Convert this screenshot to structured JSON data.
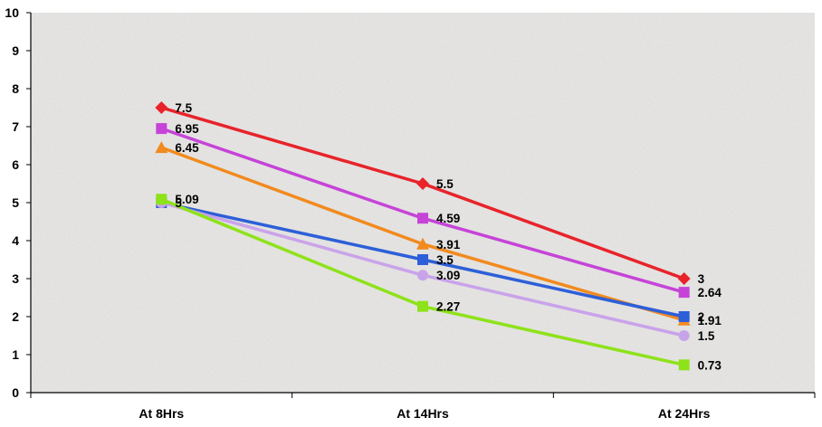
{
  "chart_data": {
    "type": "line",
    "categories": [
      "At 8Hrs",
      "At 14Hrs",
      "At 24Hrs"
    ],
    "ylim": [
      0,
      10
    ],
    "yticks": [
      "0",
      "1",
      "2",
      "3",
      "4",
      "5",
      "6",
      "7",
      "8",
      "9",
      "10"
    ],
    "grid": false,
    "background": "textured-grey",
    "series": [
      {
        "color": "#e8232a",
        "marker": "diamond",
        "values": [
          7.5,
          5.5,
          3
        ],
        "labels": [
          "7.5",
          "5.5",
          "3"
        ]
      },
      {
        "color": "#c643d8",
        "marker": "square",
        "values": [
          6.95,
          4.59,
          2.64
        ],
        "labels": [
          "6.95",
          "4.59",
          "2.64"
        ]
      },
      {
        "color": "#f28a1e",
        "marker": "triangle",
        "values": [
          6.45,
          3.91,
          1.91
        ],
        "labels": [
          "6.45",
          "3.91",
          "1.91"
        ]
      },
      {
        "color": "#2d5fd8",
        "marker": "square",
        "values": [
          5,
          3.5,
          2
        ],
        "labels": [
          "5",
          "3.5",
          "2"
        ]
      },
      {
        "color": "#c9a3ea",
        "marker": "circle",
        "values": [
          5,
          3.09,
          1.5
        ],
        "labels": [
          "",
          "3.09",
          "1.5"
        ]
      },
      {
        "color": "#8ee21a",
        "marker": "square",
        "values": [
          5.09,
          2.27,
          0.73
        ],
        "labels": [
          "5.09",
          "2.27",
          "0.73"
        ]
      }
    ]
  }
}
